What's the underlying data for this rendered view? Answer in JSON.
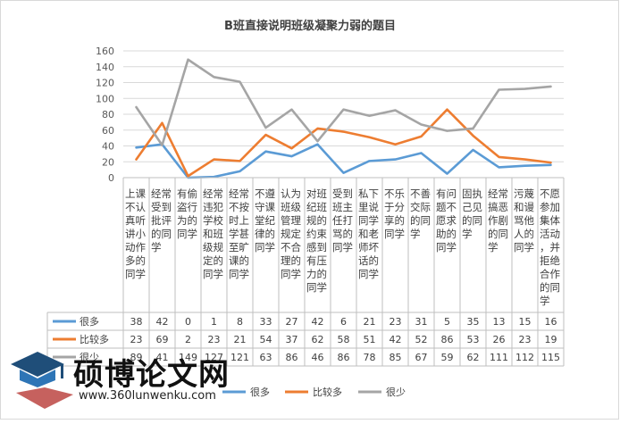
{
  "chart_data": {
    "type": "line",
    "title": "B班直接说明班级凝聚力弱的题目",
    "ylim": [
      0,
      160
    ],
    "yticks": [
      0,
      20,
      40,
      60,
      80,
      100,
      120,
      140,
      160
    ],
    "grid": true,
    "legend_position": "bottom",
    "categories": [
      "上课不认真听讲小动作多的同学",
      "经常受到批评的同学",
      "有偷盗行为的同学",
      "经常违犯学校和班级规定的同学",
      "经常不按时上学甚至旷课的同学",
      "不遵守课堂纪律的同学",
      "认为班级管理规定不合理的同学",
      "对班纪班规的约束感到有压力的同学",
      "受到班主任打骂的同学",
      "私下里说同学和老师坏话的同学",
      "不乐于分享的同学",
      "不善交际的同学",
      "有问题不愿求助的同学",
      "固执己见的同学",
      "经常搞恶作剧的同学",
      "污蔑和谩骂他人的同学",
      "不愿参加集体活动，并拒绝合作的同学"
    ],
    "series": [
      {
        "name": "很多",
        "color": "#5b9bd5",
        "values": [
          38,
          42,
          0,
          1,
          8,
          33,
          27,
          42,
          6,
          21,
          23,
          31,
          5,
          35,
          13,
          15,
          16
        ]
      },
      {
        "name": "比较多",
        "color": "#ed7d31",
        "values": [
          23,
          69,
          2,
          23,
          21,
          54,
          37,
          62,
          58,
          51,
          42,
          52,
          86,
          53,
          26,
          23,
          19
        ]
      },
      {
        "name": "很少",
        "color": "#a5a5a5",
        "values": [
          89,
          41,
          149,
          127,
          121,
          63,
          86,
          46,
          86,
          78,
          85,
          67,
          59,
          62,
          111,
          112,
          115
        ]
      }
    ]
  },
  "watermark": {
    "text": "硕博论文网",
    "url": "www.360lunwenku.com"
  }
}
